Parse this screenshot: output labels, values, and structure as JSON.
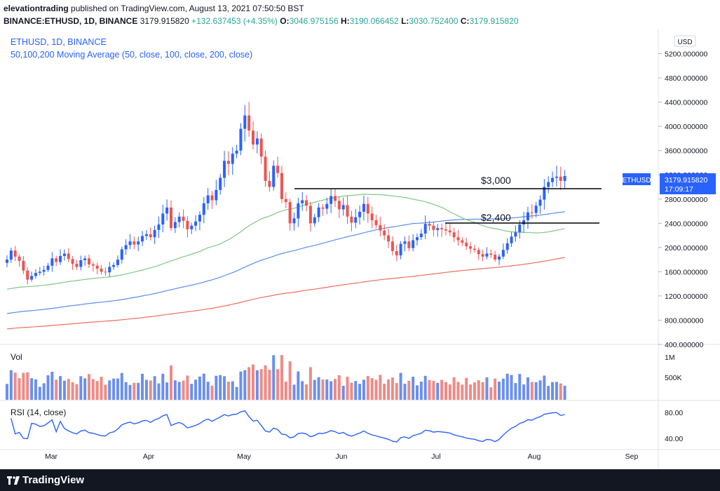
{
  "header": {
    "user": "elevationtrading",
    "published_text": "published on TradingView.com, August 13, 2021 07:50:50 BST",
    "symbol": "BINANCE:ETHUSD, 1D, BINANCE",
    "price": "3179.915820",
    "change": "+132.637453 (+4.35%)",
    "o_label": "O:",
    "o_value": "3046.975156",
    "h_label": "H:",
    "h_value": "3190.066452",
    "l_label": "L:",
    "l_value": "3030.752400",
    "c_label": "C:",
    "c_value": "3179.915820"
  },
  "legend": {
    "title": "ETHUSD, 1D, BINANCE",
    "indicator": "50,100,200 Moving Average (50, close, 100, close, 200, close)"
  },
  "price_axis": {
    "currency": "USD",
    "last_symbol": "ETHUSD",
    "last_price": "3179.915820",
    "countdown": "17:09:17"
  },
  "annotations": {
    "level_3000": "$3,000",
    "level_2400": "$2,400"
  },
  "volume_pane": {
    "label": "Vol",
    "ticks": [
      "1M",
      "500K"
    ]
  },
  "rsi_pane": {
    "label": "RSI (14, close)",
    "ticks": [
      "80.00",
      "40.00"
    ]
  },
  "x_axis": {
    "labels": [
      "Mar",
      "Apr",
      "May",
      "Jun",
      "Jul",
      "Aug",
      "Sep"
    ]
  },
  "footer": {
    "brand": "TradingView"
  },
  "colors": {
    "up": "#2962ff",
    "down": "#ef5350",
    "ma50": "#81c784",
    "ma100": "#5b8def",
    "ma200": "#ef6f5f",
    "rsi": "#2962ff",
    "accent": "#2962ff"
  },
  "chart_data": {
    "type": "candlestick",
    "title": "ETHUSD, 1D, BINANCE",
    "ylim": [
      400,
      5600
    ],
    "y_ticks": [
      "5200.000000",
      "4800.000000",
      "4400.000000",
      "4000.000000",
      "3600.000000",
      "3200.000000",
      "2800.000000",
      "2400.000000",
      "2000.000000",
      "1600.000000",
      "1200.000000",
      "800.000000",
      "400.000000"
    ],
    "closes": [
      1800,
      1950,
      1850,
      1780,
      1620,
      1470,
      1530,
      1580,
      1600,
      1630,
      1700,
      1820,
      1760,
      1860,
      1900,
      1810,
      1730,
      1680,
      1790,
      1820,
      1720,
      1700,
      1650,
      1600,
      1590,
      1680,
      1710,
      1800,
      1970,
      2040,
      2100,
      2050,
      2100,
      2190,
      2220,
      2170,
      2290,
      2380,
      2560,
      2660,
      2320,
      2420,
      2510,
      2440,
      2300,
      2360,
      2430,
      2540,
      2730,
      2860,
      2780,
      2950,
      3150,
      3430,
      3380,
      3550,
      3600,
      3960,
      4180,
      3930,
      3700,
      3800,
      3500,
      3100,
      3000,
      3350,
      3230,
      2800,
      2750,
      2400,
      2480,
      2730,
      2780,
      2690,
      2400,
      2500,
      2660,
      2640,
      2720,
      2850,
      2770,
      2630,
      2700,
      2510,
      2410,
      2500,
      2590,
      2720,
      2560,
      2450,
      2370,
      2280,
      2200,
      2100,
      1940,
      1870,
      2060,
      2100,
      1990,
      2120,
      2170,
      2230,
      2390,
      2360,
      2290,
      2320,
      2300,
      2280,
      2250,
      2170,
      2120,
      2080,
      2020,
      1980,
      1960,
      1890,
      1850,
      1900,
      1880,
      1800,
      1850,
      1960,
      2070,
      2180,
      2250,
      2380,
      2450,
      2580,
      2570,
      2690,
      2790,
      3000,
      3080,
      3150,
      3170,
      3100,
      3180
    ],
    "ma_note": "50, 100, 200 period moving averages",
    "volume_ticks": [
      "1M",
      "500K"
    ],
    "rsi_ticks": [
      "80.00",
      "40.00"
    ],
    "rsi_last": 70,
    "levels": [
      3000,
      2400
    ],
    "x_labels": [
      "Mar",
      "Apr",
      "May",
      "Jun",
      "Jul",
      "Aug",
      "Sep"
    ]
  }
}
